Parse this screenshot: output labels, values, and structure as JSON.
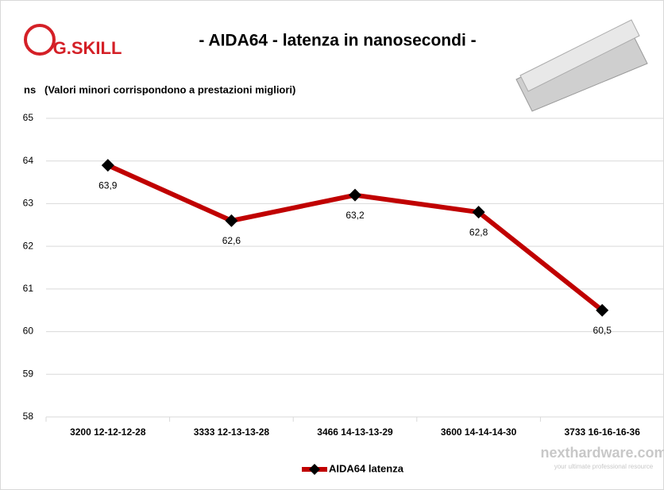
{
  "chart_data": {
    "type": "line",
    "title": "- AIDA64 - latenza in nanosecondi -",
    "y_label": "ns",
    "subtitle": "(Valori minori corrispondono a prestazioni  migliori)",
    "logo": "G.SKILL",
    "watermark": "nexthardware.com",
    "watermark_tagline": "your ultimate professional resource",
    "categories": [
      "3200 12-12-12-28",
      "3333 12-13-13-28",
      "3466 14-13-13-29",
      "3600 14-14-14-30",
      "3733 16-16-16-36"
    ],
    "series": [
      {
        "name": "AIDA64 latenza",
        "color": "#c00000",
        "values": [
          63.9,
          62.6,
          63.2,
          62.8,
          60.5
        ],
        "value_labels": [
          "63,9",
          "62,6",
          "63,2",
          "62,8",
          "60,5"
        ]
      }
    ],
    "ylim": [
      58,
      65
    ],
    "yticks": [
      58,
      59,
      60,
      61,
      62,
      63,
      64,
      65
    ],
    "grid": true
  }
}
